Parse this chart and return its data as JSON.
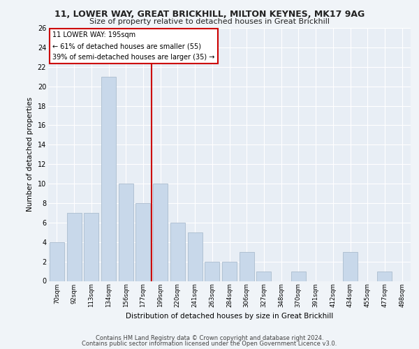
{
  "title1": "11, LOWER WAY, GREAT BRICKHILL, MILTON KEYNES, MK17 9AG",
  "title2": "Size of property relative to detached houses in Great Brickhill",
  "xlabel": "Distribution of detached houses by size in Great Brickhill",
  "ylabel": "Number of detached properties",
  "footer1": "Contains HM Land Registry data © Crown copyright and database right 2024.",
  "footer2": "Contains public sector information licensed under the Open Government Licence v3.0.",
  "annotation_title": "11 LOWER WAY: 195sqm",
  "annotation_line1": "← 61% of detached houses are smaller (55)",
  "annotation_line2": "39% of semi-detached houses are larger (35) →",
  "bar_color": "#c8d8ea",
  "bar_edge_color": "#aabcce",
  "line_color": "#cc0000",
  "annotation_box_color": "#ffffff",
  "annotation_box_edge": "#cc0000",
  "categories": [
    "70sqm",
    "92sqm",
    "113sqm",
    "134sqm",
    "156sqm",
    "177sqm",
    "199sqm",
    "220sqm",
    "241sqm",
    "263sqm",
    "284sqm",
    "306sqm",
    "327sqm",
    "348sqm",
    "370sqm",
    "391sqm",
    "412sqm",
    "434sqm",
    "455sqm",
    "477sqm",
    "498sqm"
  ],
  "values": [
    4,
    7,
    7,
    21,
    10,
    8,
    10,
    6,
    5,
    2,
    2,
    3,
    1,
    0,
    1,
    0,
    0,
    3,
    0,
    1,
    0
  ],
  "ylim": [
    0,
    26
  ],
  "yticks": [
    0,
    2,
    4,
    6,
    8,
    10,
    12,
    14,
    16,
    18,
    20,
    22,
    24,
    26
  ],
  "property_bar_index": 6,
  "bg_color": "#f0f4f8",
  "plot_bg_color": "#e8eef5"
}
